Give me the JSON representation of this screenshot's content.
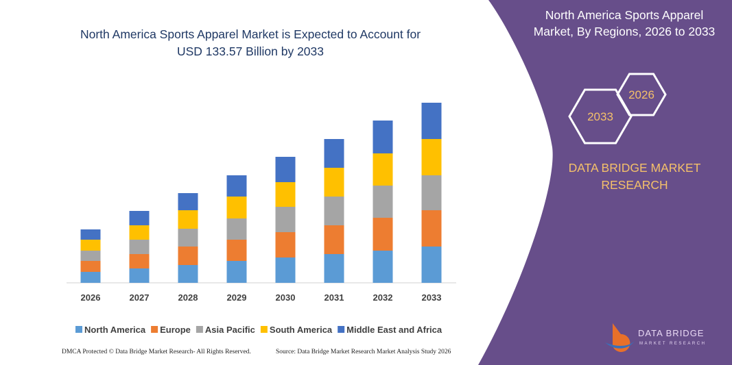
{
  "chart_data": {
    "type": "stacked-bar",
    "title": "North America Sports Apparel Market is Expected to Account for USD 133.57 Billion by 2033",
    "categories": [
      "2026",
      "2027",
      "2028",
      "2029",
      "2030",
      "2031",
      "2032",
      "2033"
    ],
    "series": [
      {
        "name": "North America",
        "color": "#5b9bd5",
        "values": [
          16,
          21,
          26,
          32,
          37,
          42,
          47,
          53
        ]
      },
      {
        "name": "Europe",
        "color": "#ed7d31",
        "values": [
          16,
          21,
          27,
          31,
          37,
          42,
          48,
          53
        ]
      },
      {
        "name": "Asia Pacific",
        "color": "#a5a5a5",
        "values": [
          15,
          21,
          26,
          31,
          37,
          42,
          47,
          51
        ]
      },
      {
        "name": "South America",
        "color": "#ffc000",
        "values": [
          16,
          21,
          27,
          32,
          36,
          42,
          47,
          53
        ]
      },
      {
        "name": "Middle East and Africa",
        "color": "#4472c4",
        "values": [
          15,
          21,
          25,
          31,
          37,
          42,
          48,
          53
        ]
      }
    ]
  },
  "panel": {
    "title": "North America Sports Apparel Market, By Regions, 2026 to 2033",
    "hexagons": [
      "2033",
      "2026"
    ],
    "brand": "DATA BRIDGE MARKET RESEARCH",
    "logo_name": "DATA BRIDGE",
    "logo_sub": "MARKET RESEARCH"
  },
  "footer": {
    "left": "DMCA Protected © Data Bridge Market Research- All Rights Reserved.",
    "right": "Source: Data Bridge Market Research Market Analysis Study 2026"
  }
}
